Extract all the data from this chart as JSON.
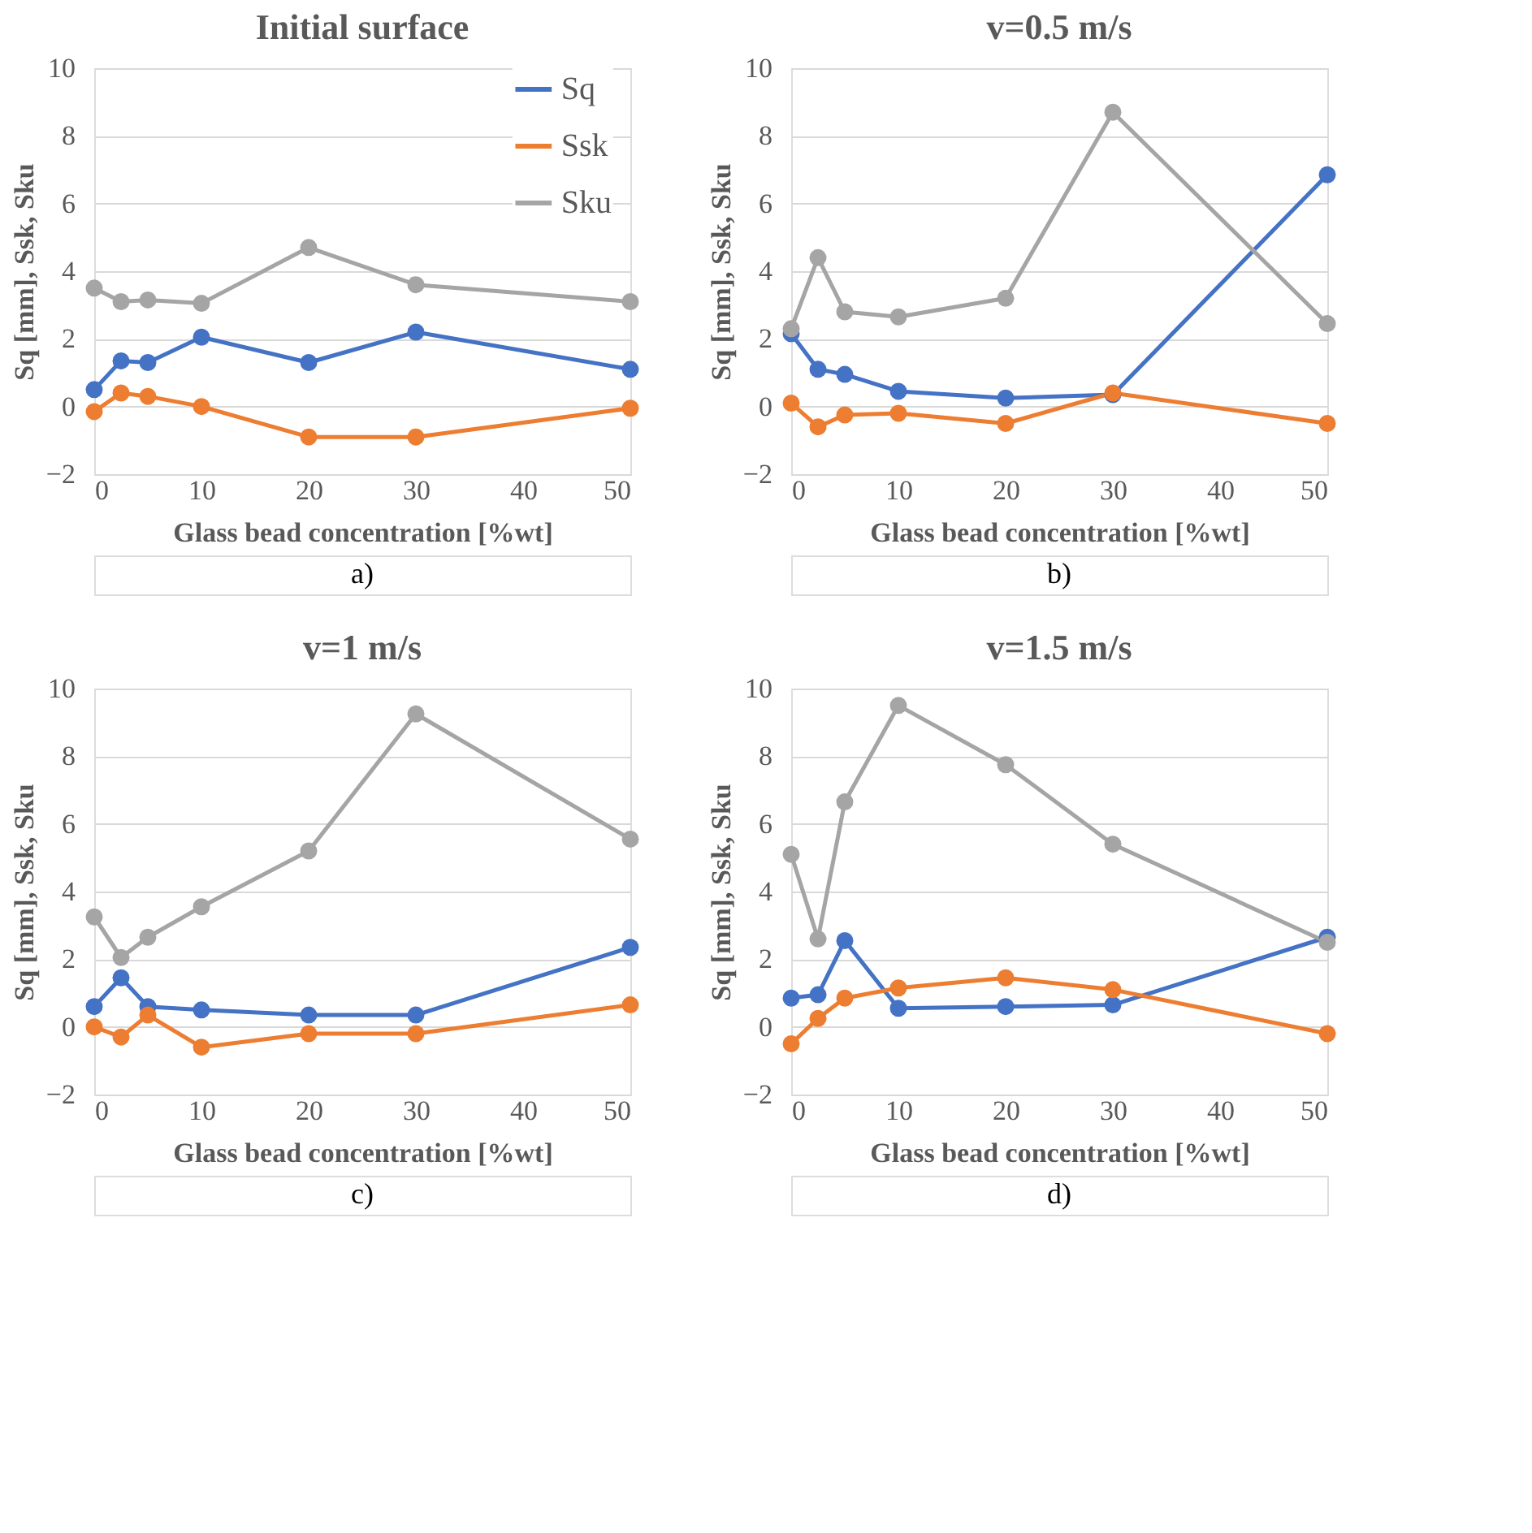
{
  "chart_data": [
    {
      "type": "line",
      "title": "Initial surface",
      "xlabel": "Glass bead concentration [%wt]",
      "ylabel": "Sq [mm], Ssk, Sku",
      "x": [
        0,
        2.5,
        5,
        10,
        20,
        30,
        50
      ],
      "xlim": [
        0,
        50
      ],
      "xticks": [
        0,
        10,
        20,
        30,
        40,
        50
      ],
      "ylim": [
        -2,
        10
      ],
      "yticks": [
        -2,
        0,
        2,
        4,
        6,
        8,
        10
      ],
      "grid": "y",
      "legend": "top right",
      "marker": "circle",
      "line_style": "solid",
      "annotations": [
        "a)"
      ],
      "series": [
        {
          "name": "Sq",
          "color": "#4472c4",
          "values": [
            0.5,
            1.35,
            1.3,
            2.05,
            1.3,
            2.2,
            1.1
          ]
        },
        {
          "name": "Ssk",
          "color": "#ed7d31",
          "values": [
            -0.15,
            0.4,
            0.3,
            0.0,
            -0.9,
            -0.9,
            -0.05
          ]
        },
        {
          "name": "Sku",
          "color": "#a5a5a5",
          "values": [
            3.5,
            3.1,
            3.15,
            3.05,
            4.7,
            3.6,
            3.1
          ]
        }
      ]
    },
    {
      "type": "line",
      "title": "v=0.5 m/s",
      "xlabel": "Glass bead concentration [%wt]",
      "ylabel": "Sq [mm], Ssk, Sku",
      "x": [
        0,
        2.5,
        5,
        10,
        20,
        30,
        50
      ],
      "xlim": [
        0,
        50
      ],
      "xticks": [
        0,
        10,
        20,
        30,
        40,
        50
      ],
      "ylim": [
        -2,
        10
      ],
      "yticks": [
        -2,
        0,
        2,
        4,
        6,
        8,
        10
      ],
      "grid": "y",
      "legend": "top left",
      "marker": "circle",
      "line_style": "solid",
      "annotations": [
        "b)"
      ],
      "series": [
        {
          "name": "Sq",
          "color": "#4472c4",
          "values": [
            2.15,
            1.1,
            0.95,
            0.45,
            0.25,
            0.35,
            6.85
          ]
        },
        {
          "name": "Ssk",
          "color": "#ed7d31",
          "values": [
            0.1,
            -0.6,
            -0.25,
            -0.2,
            -0.5,
            0.4,
            -0.5
          ]
        },
        {
          "name": "Sku",
          "color": "#a5a5a5",
          "values": [
            2.3,
            4.4,
            2.8,
            2.65,
            3.2,
            8.7,
            2.45
          ]
        }
      ]
    },
    {
      "type": "line",
      "title": "v=1 m/s",
      "xlabel": "Glass bead concentration [%wt]",
      "ylabel": "Sq [mm], Ssk, Sku",
      "x": [
        0,
        2.5,
        5,
        10,
        20,
        30,
        50
      ],
      "xlim": [
        0,
        50
      ],
      "xticks": [
        0,
        10,
        20,
        30,
        40,
        50
      ],
      "ylim": [
        -2,
        10
      ],
      "yticks": [
        -2,
        0,
        2,
        4,
        6,
        8,
        10
      ],
      "grid": "y",
      "legend": "right",
      "marker": "circle",
      "line_style": "solid",
      "annotations": [
        "c)"
      ],
      "series": [
        {
          "name": "Sq",
          "color": "#4472c4",
          "values": [
            0.6,
            1.45,
            0.6,
            0.5,
            0.35,
            0.35,
            2.35
          ]
        },
        {
          "name": "Ssk",
          "color": "#ed7d31",
          "values": [
            0.0,
            -0.3,
            0.35,
            -0.6,
            -0.2,
            -0.2,
            0.65
          ]
        },
        {
          "name": "Sku",
          "color": "#a5a5a5",
          "values": [
            3.25,
            2.05,
            2.65,
            3.55,
            5.2,
            9.25,
            5.55
          ]
        }
      ]
    },
    {
      "type": "line",
      "title": "v=1.5 m/s",
      "xlabel": "Glass bead concentration [%wt]",
      "ylabel": "Sq [mm], Ssk, Sku",
      "x": [
        0,
        2.5,
        5,
        10,
        20,
        30,
        50
      ],
      "xlim": [
        0,
        50
      ],
      "xticks": [
        0,
        10,
        20,
        30,
        40,
        50
      ],
      "ylim": [
        -2,
        10
      ],
      "yticks": [
        -2,
        0,
        2,
        4,
        6,
        8,
        10
      ],
      "grid": "y",
      "legend": "top right",
      "marker": "circle",
      "line_style": "solid",
      "annotations": [
        "d)"
      ],
      "series": [
        {
          "name": "Sq",
          "color": "#4472c4",
          "values": [
            0.85,
            0.95,
            2.55,
            0.55,
            0.6,
            0.65,
            2.65
          ]
        },
        {
          "name": "Ssk",
          "color": "#ed7d31",
          "values": [
            -0.5,
            0.25,
            0.85,
            1.15,
            1.45,
            1.1,
            -0.2
          ]
        },
        {
          "name": "Sku",
          "color": "#a5a5a5",
          "values": [
            5.1,
            2.6,
            6.65,
            9.5,
            7.75,
            5.4,
            2.5
          ]
        }
      ]
    }
  ]
}
